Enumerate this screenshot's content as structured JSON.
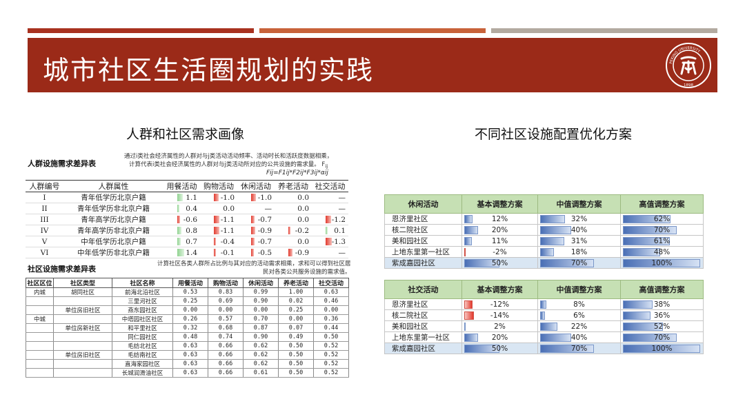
{
  "slide": {
    "title": "城市社区生活圈规划的实践",
    "left_heading": "人群和社区需求画像",
    "right_heading": "不同社区设施配置优化方案"
  },
  "logo": {
    "text_top": "PEKING UNIVERSITY",
    "year": "1898",
    "center": "北大"
  },
  "crowd_table": {
    "caption": "人群设施需求差异表",
    "note_line1": "通过i类社会经济属性的人群对与j类活动活动频率、活动时长和活跃度数据相乘，",
    "note_line2": "计算代表i类社会经济属性的人群对与j类活动所对应的公共设施的需求量。 F",
    "note_sub": "ij",
    "formula": "Fij=F1ij*F2ij*F3ij*αij",
    "headers": [
      "人群编号",
      "人群属性",
      "用餐活动",
      "购物活动",
      "休闲活动",
      "养老活动",
      "社交活动"
    ],
    "rows": [
      {
        "id": "I",
        "attr": "青年低学历北京户籍",
        "v": [
          "1.1",
          "-1.0",
          "-1.0",
          "0.0",
          "—"
        ]
      },
      {
        "id": "II",
        "attr": "青年低学历非北京户籍",
        "v": [
          "0.4",
          "0.0",
          "—",
          "0.0",
          "—"
        ]
      },
      {
        "id": "III",
        "attr": "青年高学历北京户籍",
        "v": [
          "-0.6",
          "-1.1",
          "-0.7",
          "0.0",
          "-1.2"
        ]
      },
      {
        "id": "IV",
        "attr": "青年高学历非北京户籍",
        "v": [
          "0.8",
          "-1.1",
          "-0.9",
          "-0.2",
          "0.1"
        ]
      },
      {
        "id": "V",
        "attr": "中年低学历北京户籍",
        "v": [
          "0.7",
          "-0.4",
          "-0.7",
          "0.0",
          "-1.3"
        ]
      },
      {
        "id": "VI",
        "attr": "中年低学历非北京户籍",
        "v": [
          "1.4",
          "-0.1",
          "-0.5",
          "-0.9",
          "—"
        ]
      }
    ]
  },
  "community_table": {
    "caption": "社区设施需求差异表",
    "note_line1": "计算社区各类人群所占比例与其对应的活动需求相乘，求和可以得到社区居",
    "note_line2": "民对各类公共服务设施的需求值。",
    "headers": [
      "社区区位",
      "社区类型",
      "社区名称",
      "用餐活动",
      "购物活动",
      "休闲活动",
      "养老活动",
      "社交活动"
    ],
    "rows": [
      {
        "loc": "内城",
        "type": "胡同社区",
        "name": "前海北沿社区",
        "v": [
          "0.53",
          "0.83",
          "0.99",
          "1.00",
          "0.63"
        ]
      },
      {
        "loc": "",
        "type": "",
        "name": "三里河社区",
        "v": [
          "0.25",
          "0.69",
          "0.90",
          "0.02",
          "0.46"
        ]
      },
      {
        "loc": "",
        "type": "单位房旧社区",
        "name": "燕东园社区",
        "v": [
          "0.00",
          "0.00",
          "0.00",
          "0.25",
          "0.00"
        ]
      },
      {
        "loc": "中城",
        "type": "",
        "name": "中塔园社区社区",
        "v": [
          "0.26",
          "0.57",
          "0.70",
          "0.00",
          "0.36"
        ]
      },
      {
        "loc": "",
        "type": "单位房新社区",
        "name": "和平里社区",
        "v": [
          "0.32",
          "0.68",
          "0.87",
          "0.07",
          "0.44"
        ]
      },
      {
        "loc": "",
        "type": "",
        "name": "同仁园社区",
        "v": [
          "0.48",
          "0.74",
          "0.90",
          "0.49",
          "0.50"
        ]
      },
      {
        "loc": "",
        "type": "",
        "name": "毛纺北社区",
        "v": [
          "0.63",
          "0.66",
          "0.62",
          "0.50",
          "0.52"
        ]
      },
      {
        "loc": "",
        "type": "单位房旧社区",
        "name": "毛纺南社区",
        "v": [
          "0.63",
          "0.66",
          "0.62",
          "0.50",
          "0.52"
        ]
      },
      {
        "loc": "",
        "type": "",
        "name": "直海家园社区",
        "v": [
          "0.63",
          "0.66",
          "0.62",
          "0.50",
          "0.52"
        ]
      },
      {
        "loc": "",
        "type": "",
        "name": "长城润滑油社区",
        "v": [
          "0.63",
          "0.66",
          "0.61",
          "0.50",
          "0.52"
        ]
      }
    ]
  },
  "leisure_table": {
    "headers": [
      "休闲活动",
      "基本调整方案",
      "中值调整方案",
      "高值调整方案"
    ],
    "rows": [
      {
        "name": "恩济里社区",
        "vals": [
          "12%",
          "32%",
          "62%"
        ],
        "frac": [
          0.12,
          0.32,
          0.62
        ]
      },
      {
        "name": "核二院社区",
        "vals": [
          "20%",
          "40%",
          "70%"
        ],
        "frac": [
          0.2,
          0.4,
          0.7
        ]
      },
      {
        "name": "美和园社区",
        "vals": [
          "11%",
          "31%",
          "61%"
        ],
        "frac": [
          0.11,
          0.31,
          0.61
        ]
      },
      {
        "name": "上地东里第一社区",
        "vals": [
          "-2%",
          "18%",
          "48%"
        ],
        "frac": [
          -0.02,
          0.18,
          0.48
        ]
      },
      {
        "name": "紫成嘉园社区",
        "vals": [
          "50%",
          "70%",
          "100%"
        ],
        "frac": [
          0.5,
          0.7,
          1.0
        ]
      }
    ]
  },
  "social_table": {
    "headers": [
      "社交活动",
      "基本调整方案",
      "中值调整方案",
      "高值调整方案"
    ],
    "rows": [
      {
        "name": "恩济里社区",
        "vals": [
          "-12%",
          "8%",
          "38%"
        ],
        "frac": [
          -0.12,
          0.08,
          0.38
        ]
      },
      {
        "name": "核二院社区",
        "vals": [
          "-14%",
          "6%",
          "36%"
        ],
        "frac": [
          -0.14,
          0.06,
          0.36
        ]
      },
      {
        "name": "美和园社区",
        "vals": [
          "2%",
          "22%",
          "52%"
        ],
        "frac": [
          0.02,
          0.22,
          0.52
        ]
      },
      {
        "name": "上地东里第一社区",
        "vals": [
          "20%",
          "40%",
          "70%"
        ],
        "frac": [
          0.2,
          0.4,
          0.7
        ]
      },
      {
        "name": "紫成嘉园社区",
        "vals": [
          "50%",
          "70%",
          "100%"
        ],
        "frac": [
          0.5,
          0.7,
          1.0
        ]
      }
    ]
  }
}
